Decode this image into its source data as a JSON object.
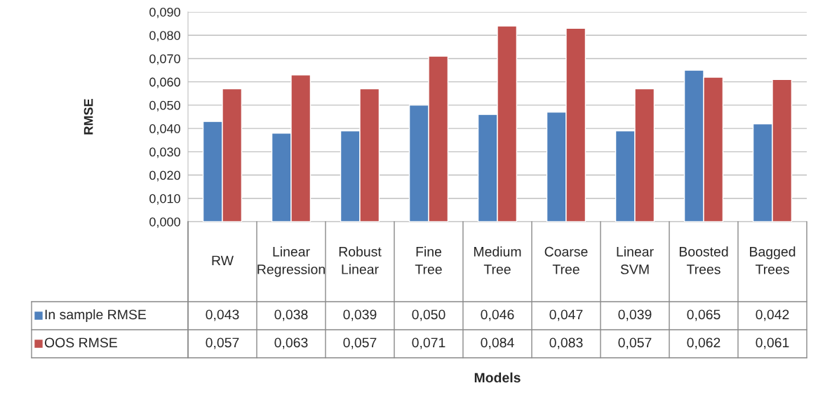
{
  "chart_data": {
    "type": "bar",
    "annotations": [
      "Models"
    ],
    "ylabel": "RMSE",
    "categories": [
      "RW",
      "Linear\nRegression",
      "Robust\nLinear",
      "Fine\nTree",
      "Medium\nTree",
      "Coarse\nTree",
      "Linear\nSVM",
      "Boosted\nTrees",
      "Bagged\nTrees"
    ],
    "series": [
      {
        "name": "In sample RMSE",
        "color": "#4f81bd",
        "values": [
          0.043,
          0.038,
          0.039,
          0.05,
          0.046,
          0.047,
          0.039,
          0.065,
          0.042
        ],
        "value_labels": [
          "0,043",
          "0,038",
          "0,039",
          "0,050",
          "0,046",
          "0,047",
          "0,039",
          "0,065",
          "0,042"
        ]
      },
      {
        "name": "OOS RMSE",
        "color": "#c0504d",
        "values": [
          0.057,
          0.063,
          0.057,
          0.071,
          0.084,
          0.083,
          0.057,
          0.062,
          0.061
        ],
        "value_labels": [
          "0,057",
          "0,063",
          "0,057",
          "0,071",
          "0,084",
          "0,083",
          "0,057",
          "0,062",
          "0,061"
        ]
      }
    ],
    "ylim": [
      0,
      0.09
    ],
    "yticks": [
      {
        "value": 0,
        "label": "0,000"
      },
      {
        "value": 0.01,
        "label": "0,010"
      },
      {
        "value": 0.02,
        "label": "0,020"
      },
      {
        "value": 0.03,
        "label": "0,030"
      },
      {
        "value": 0.04,
        "label": "0,040"
      },
      {
        "value": 0.05,
        "label": "0,050"
      },
      {
        "value": 0.06,
        "label": "0,060"
      },
      {
        "value": 0.07,
        "label": "0,070"
      },
      {
        "value": 0.08,
        "label": "0,080"
      },
      {
        "value": 0.09,
        "label": "0,090"
      }
    ],
    "grid": "y",
    "legend": "bottom left"
  }
}
